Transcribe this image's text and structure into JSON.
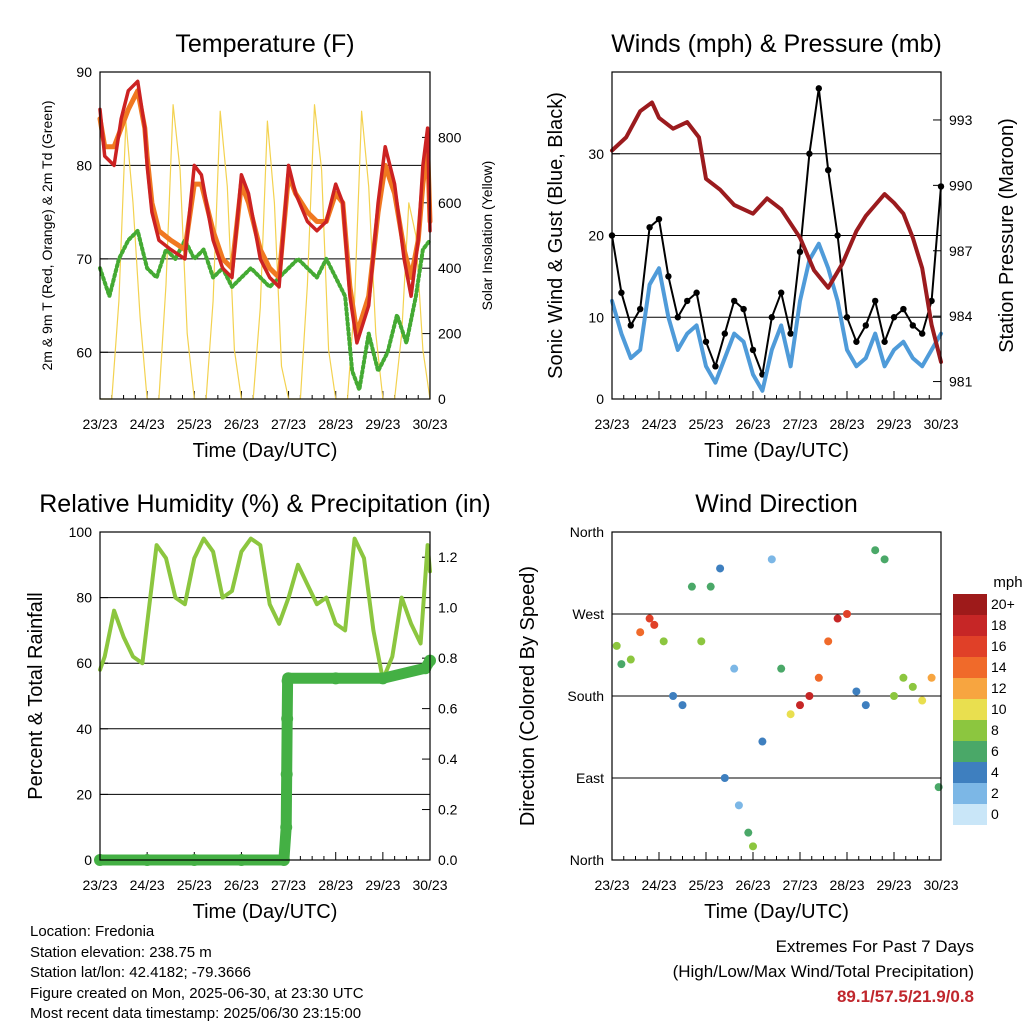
{
  "chart_data": [
    {
      "type": "line",
      "title": "Temperature (F)",
      "xlabel": "Time (Day/UTC)",
      "ylabel": "2m & 9m T (Red, Orange) & 2m Td (Green)",
      "y2label": "Solar Insolation (Yellow)",
      "xticks": [
        "23/23",
        "24/23",
        "25/23",
        "26/23",
        "27/23",
        "28/23",
        "29/23",
        "30/23"
      ],
      "ylim": [
        55,
        90
      ],
      "yticks": [
        60,
        70,
        80,
        90
      ],
      "y2lim": [
        0,
        1000
      ],
      "y2ticks": [
        0,
        200,
        400,
        600,
        800
      ],
      "gridlines": [
        60,
        70,
        80,
        90
      ],
      "x_unit": "days since 23/23",
      "series": [
        {
          "name": "2m T",
          "color": "#cc2222",
          "x": [
            0,
            0.1,
            0.3,
            0.45,
            0.6,
            0.8,
            0.95,
            1.0,
            1.1,
            1.25,
            1.5,
            1.8,
            2.0,
            2.15,
            2.4,
            2.6,
            2.8,
            3.0,
            3.15,
            3.4,
            3.6,
            3.8,
            4.0,
            4.15,
            4.4,
            4.6,
            4.8,
            5.0,
            5.15,
            5.3,
            5.45,
            5.7,
            5.9,
            6.05,
            6.25,
            6.45,
            6.6,
            6.75,
            6.85,
            6.95,
            7.0
          ],
          "values": [
            86,
            81,
            80,
            85,
            88,
            89,
            84,
            80,
            75,
            72,
            71,
            70,
            80,
            79,
            72,
            69,
            68,
            79,
            77,
            70,
            68,
            67,
            80,
            77,
            74,
            73,
            74,
            78,
            76,
            66,
            61,
            65,
            76,
            82,
            78,
            70,
            66,
            72,
            80,
            84,
            73
          ]
        },
        {
          "name": "9m T",
          "color": "#f07820",
          "x": [
            0,
            0.1,
            0.3,
            0.45,
            0.6,
            0.8,
            0.95,
            1.0,
            1.1,
            1.25,
            1.5,
            1.8,
            2.0,
            2.15,
            2.4,
            2.6,
            2.8,
            3.0,
            3.15,
            3.4,
            3.6,
            3.8,
            4.0,
            4.15,
            4.4,
            4.6,
            4.8,
            5.0,
            5.15,
            5.3,
            5.45,
            5.7,
            5.9,
            6.05,
            6.25,
            6.45,
            6.6,
            6.75,
            6.85,
            6.95,
            7.0
          ],
          "values": [
            85,
            82,
            82,
            84,
            86,
            88,
            84,
            81,
            76,
            73,
            72,
            71,
            78,
            78,
            73,
            70,
            69,
            78,
            76,
            71,
            69,
            68,
            79,
            77,
            75,
            74,
            74,
            77,
            76,
            67,
            62,
            66,
            75,
            80,
            77,
            71,
            68,
            72,
            78,
            82,
            74
          ]
        },
        {
          "name": "2m Td",
          "color": "#44aa33",
          "x": [
            0,
            0.2,
            0.4,
            0.6,
            0.8,
            1.0,
            1.2,
            1.4,
            1.6,
            1.8,
            2.0,
            2.2,
            2.4,
            2.6,
            2.8,
            3.0,
            3.2,
            3.4,
            3.6,
            3.8,
            4.0,
            4.2,
            4.4,
            4.6,
            4.8,
            5.0,
            5.2,
            5.35,
            5.5,
            5.7,
            5.9,
            6.1,
            6.3,
            6.5,
            6.7,
            6.85,
            7.0
          ],
          "values": [
            69,
            66,
            70,
            72,
            73,
            69,
            68,
            71,
            70,
            72,
            70,
            71,
            68,
            69,
            67,
            68,
            69,
            68,
            67,
            68,
            69,
            70,
            69,
            68,
            70,
            68,
            66,
            58,
            56,
            62,
            58,
            60,
            64,
            61,
            66,
            71,
            72
          ]
        },
        {
          "name": "Solar Insolation",
          "color": "#f3d250",
          "axis": "y2",
          "x": [
            0,
            0.25,
            0.4,
            0.55,
            0.7,
            0.85,
            1.0,
            1.25,
            1.4,
            1.55,
            1.7,
            1.85,
            2.0,
            2.25,
            2.4,
            2.55,
            2.7,
            2.85,
            3.0,
            3.25,
            3.4,
            3.55,
            3.7,
            3.85,
            4.0,
            4.25,
            4.4,
            4.55,
            4.7,
            4.85,
            5.0,
            5.25,
            5.4,
            5.55,
            5.7,
            5.85,
            6.0,
            6.25,
            6.4,
            6.55,
            6.7,
            6.85,
            7.0
          ],
          "values": [
            0,
            0,
            300,
            850,
            600,
            250,
            0,
            0,
            350,
            900,
            700,
            200,
            0,
            0,
            300,
            880,
            650,
            150,
            0,
            0,
            280,
            850,
            600,
            100,
            0,
            0,
            350,
            900,
            700,
            150,
            0,
            0,
            300,
            880,
            650,
            200,
            0,
            0,
            200,
            600,
            500,
            150,
            0
          ]
        }
      ]
    },
    {
      "type": "scatter",
      "title": "Winds (mph) & Pressure (mb)",
      "xlabel": "Time (Day/UTC)",
      "ylabel": "Sonic Wind & Gust (Blue, Black)",
      "y2label": "Station Pressure (Maroon)",
      "xticks": [
        "23/23",
        "24/23",
        "25/23",
        "26/23",
        "27/23",
        "28/23",
        "29/23",
        "30/23"
      ],
      "ylim": [
        0,
        40
      ],
      "yticks": [
        0,
        10,
        20,
        30
      ],
      "y2lim": [
        980.2,
        995.2
      ],
      "y2ticks": [
        981,
        984,
        987,
        990,
        993
      ],
      "gridlines": [
        10,
        20,
        30
      ],
      "x_unit": "days since 23/23",
      "series": [
        {
          "name": "Sonic Wind",
          "color": "#4f9bd9",
          "x": [
            0,
            0.2,
            0.4,
            0.6,
            0.8,
            1.0,
            1.2,
            1.4,
            1.6,
            1.8,
            2.0,
            2.2,
            2.4,
            2.6,
            2.8,
            3.0,
            3.2,
            3.4,
            3.6,
            3.8,
            4.0,
            4.2,
            4.4,
            4.6,
            4.8,
            5.0,
            5.2,
            5.4,
            5.6,
            5.8,
            6.0,
            6.2,
            6.4,
            6.6,
            6.8,
            7.0
          ],
          "values": [
            12,
            8,
            5,
            6,
            14,
            16,
            10,
            6,
            8,
            9,
            4,
            2,
            5,
            8,
            7,
            3,
            1,
            6,
            9,
            4,
            12,
            17,
            19,
            16,
            12,
            6,
            4,
            5,
            8,
            4,
            6,
            7,
            5,
            4,
            6,
            8
          ]
        },
        {
          "name": "Gust",
          "color": "#000000",
          "x": [
            0,
            0.2,
            0.4,
            0.6,
            0.8,
            1.0,
            1.2,
            1.4,
            1.6,
            1.8,
            2.0,
            2.2,
            2.4,
            2.6,
            2.8,
            3.0,
            3.2,
            3.4,
            3.6,
            3.8,
            4.0,
            4.2,
            4.4,
            4.6,
            4.8,
            5.0,
            5.2,
            5.4,
            5.6,
            5.8,
            6.0,
            6.2,
            6.4,
            6.6,
            6.8,
            7.0
          ],
          "values": [
            20,
            13,
            9,
            11,
            21,
            22,
            15,
            10,
            12,
            13,
            7,
            4,
            8,
            12,
            11,
            6,
            3,
            10,
            13,
            8,
            18,
            30,
            38,
            28,
            20,
            10,
            7,
            9,
            12,
            7,
            10,
            11,
            9,
            8,
            12,
            26
          ]
        },
        {
          "name": "Station Pressure",
          "color": "#9b1b1e",
          "axis": "y2",
          "x": [
            0,
            0.3,
            0.6,
            0.85,
            1.0,
            1.3,
            1.6,
            1.85,
            2.0,
            2.3,
            2.6,
            3.0,
            3.3,
            3.6,
            4.0,
            4.3,
            4.6,
            4.9,
            5.2,
            5.4,
            5.6,
            5.8,
            6.0,
            6.2,
            6.4,
            6.6,
            6.8,
            7.0
          ],
          "values": [
            991.6,
            992.2,
            993.4,
            993.8,
            993.1,
            992.6,
            992.9,
            992.2,
            990.3,
            989.8,
            989.1,
            988.7,
            989.4,
            988.9,
            987.6,
            986.1,
            985.3,
            986.4,
            987.9,
            988.6,
            989.1,
            989.6,
            989.2,
            988.7,
            987.6,
            986.2,
            983.6,
            981.9
          ]
        }
      ]
    },
    {
      "type": "line",
      "title": "Relative Humidity (%) & Precipitation (in)",
      "xlabel": "Time (Day/UTC)",
      "ylabel": "Percent & Total Rainfall",
      "xticks": [
        "23/23",
        "24/23",
        "25/23",
        "26/23",
        "27/23",
        "28/23",
        "29/23",
        "30/23"
      ],
      "ylim": [
        0,
        100
      ],
      "yticks": [
        0,
        20,
        40,
        60,
        80,
        100
      ],
      "y2lim": [
        0,
        1.3
      ],
      "y2ticks": [
        "0.0",
        "0.2",
        "0.4",
        "0.6",
        "0.8",
        "1.0",
        "1.2"
      ],
      "gridlines": [
        20,
        40,
        60,
        80
      ],
      "x_unit": "days since 23/23",
      "series": [
        {
          "name": "Relative Humidity",
          "color": "#8cc63f",
          "x": [
            0,
            0.1,
            0.3,
            0.5,
            0.7,
            0.9,
            1.0,
            1.2,
            1.4,
            1.6,
            1.8,
            2.0,
            2.2,
            2.4,
            2.6,
            2.8,
            3.0,
            3.2,
            3.4,
            3.6,
            3.8,
            4.0,
            4.2,
            4.4,
            4.6,
            4.8,
            5.0,
            5.2,
            5.4,
            5.6,
            5.8,
            6.0,
            6.2,
            6.4,
            6.6,
            6.8,
            6.95,
            7.0
          ],
          "values": [
            58,
            62,
            76,
            68,
            62,
            60,
            72,
            96,
            92,
            80,
            78,
            92,
            98,
            94,
            80,
            82,
            94,
            98,
            96,
            78,
            72,
            80,
            90,
            84,
            78,
            80,
            72,
            70,
            98,
            92,
            70,
            55,
            62,
            80,
            72,
            66,
            96,
            88
          ]
        },
        {
          "name": "Total Precipitation",
          "color": "#44b044",
          "axis": "y2",
          "x": [
            0,
            1,
            2,
            3,
            3.9,
            3.95,
            3.96,
            3.97,
            3.98,
            3.99,
            4.0,
            5,
            6,
            6.9,
            7.0
          ],
          "values": [
            0,
            0,
            0,
            0,
            0,
            0.13,
            0.34,
            0.56,
            0.71,
            0.72,
            0.72,
            0.72,
            0.72,
            0.76,
            0.79
          ]
        }
      ]
    },
    {
      "type": "scatter",
      "title": "Wind Direction",
      "xlabel": "Time (Day/UTC)",
      "ylabel": "Direction (Colored By Speed)",
      "xticks": [
        "23/23",
        "24/23",
        "25/23",
        "26/23",
        "27/23",
        "28/23",
        "29/23",
        "30/23"
      ],
      "yticks": [
        "North",
        "East",
        "South",
        "West",
        "North"
      ],
      "ylim": [
        0,
        360
      ],
      "x_unit": "days since 23/23",
      "colorbar": {
        "title": "mph",
        "labels": [
          "20+",
          "18",
          "16",
          "14",
          "12",
          "10",
          "8",
          "6",
          "4",
          "2",
          "0"
        ],
        "colors": [
          "#9e1a1a",
          "#c62626",
          "#e04028",
          "#f06a2a",
          "#f7a540",
          "#e9df4f",
          "#8cc63f",
          "#4aa868",
          "#3e7fbf",
          "#7cb7e6",
          "#c9e6f8"
        ]
      },
      "points": [
        {
          "x": 0.1,
          "dir": 235,
          "speed": 8
        },
        {
          "x": 0.2,
          "dir": 215,
          "speed": 6
        },
        {
          "x": 0.4,
          "dir": 220,
          "speed": 7
        },
        {
          "x": 0.6,
          "dir": 250,
          "speed": 14
        },
        {
          "x": 0.8,
          "dir": 265,
          "speed": 16
        },
        {
          "x": 0.9,
          "dir": 258,
          "speed": 15
        },
        {
          "x": 1.1,
          "dir": 240,
          "speed": 8
        },
        {
          "x": 1.3,
          "dir": 180,
          "speed": 3
        },
        {
          "x": 1.5,
          "dir": 170,
          "speed": 4
        },
        {
          "x": 1.7,
          "dir": 300,
          "speed": 6
        },
        {
          "x": 1.9,
          "dir": 240,
          "speed": 8
        },
        {
          "x": 2.1,
          "dir": 300,
          "speed": 5
        },
        {
          "x": 2.3,
          "dir": 320,
          "speed": 4
        },
        {
          "x": 2.4,
          "dir": 90,
          "speed": 3
        },
        {
          "x": 2.6,
          "dir": 210,
          "speed": 2
        },
        {
          "x": 2.7,
          "dir": 60,
          "speed": 1
        },
        {
          "x": 2.9,
          "dir": 30,
          "speed": 5
        },
        {
          "x": 3.0,
          "dir": 15,
          "speed": 8
        },
        {
          "x": 3.2,
          "dir": 130,
          "speed": 3
        },
        {
          "x": 3.4,
          "dir": 330,
          "speed": 2
        },
        {
          "x": 3.6,
          "dir": 210,
          "speed": 6
        },
        {
          "x": 3.8,
          "dir": 160,
          "speed": 9
        },
        {
          "x": 4.0,
          "dir": 170,
          "speed": 17
        },
        {
          "x": 4.2,
          "dir": 180,
          "speed": 18
        },
        {
          "x": 4.4,
          "dir": 200,
          "speed": 14
        },
        {
          "x": 4.6,
          "dir": 240,
          "speed": 13
        },
        {
          "x": 4.8,
          "dir": 265,
          "speed": 17
        },
        {
          "x": 5.0,
          "dir": 270,
          "speed": 16
        },
        {
          "x": 5.2,
          "dir": 185,
          "speed": 4
        },
        {
          "x": 5.4,
          "dir": 170,
          "speed": 3
        },
        {
          "x": 5.6,
          "dir": 340,
          "speed": 6
        },
        {
          "x": 5.8,
          "dir": 330,
          "speed": 5
        },
        {
          "x": 6.0,
          "dir": 180,
          "speed": 7
        },
        {
          "x": 6.2,
          "dir": 200,
          "speed": 8
        },
        {
          "x": 6.4,
          "dir": 190,
          "speed": 8
        },
        {
          "x": 6.6,
          "dir": 175,
          "speed": 9
        },
        {
          "x": 6.8,
          "dir": 200,
          "speed": 11
        },
        {
          "x": 6.95,
          "dir": 80,
          "speed": 6
        }
      ]
    }
  ],
  "info": {
    "location": "Location: Fredonia",
    "elevation": "Station elevation: 238.75 m",
    "latlon": "Station lat/lon: 42.4182; -79.3666",
    "created": "Figure created on Mon, 2025-06-30, at 23:30 UTC",
    "recent": "Most recent data timestamp: 2025/06/30 23:15:00"
  },
  "extremes": {
    "line1": "Extremes For Past 7 Days",
    "line2": "(High/Low/Max Wind/Total Precipitation)",
    "values": "89.1/57.5/21.9/0.8"
  }
}
